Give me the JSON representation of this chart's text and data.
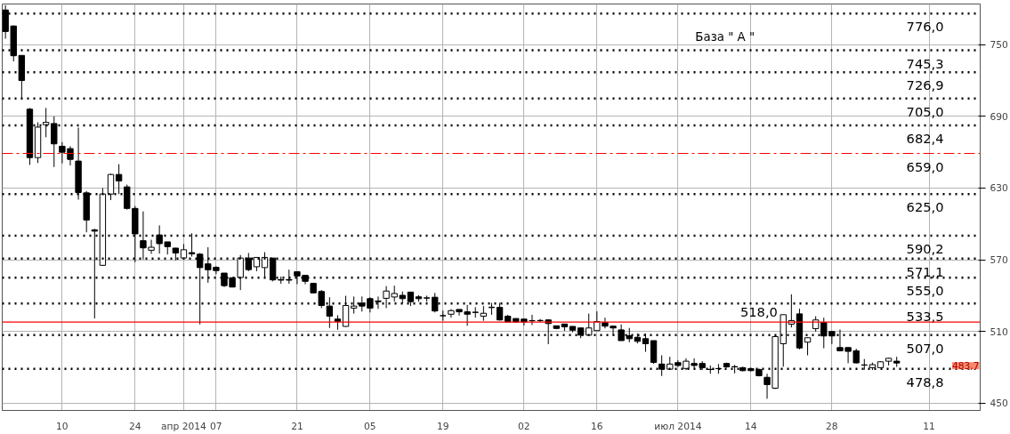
{
  "chart_data": {
    "type": "candlestick",
    "categories": [
      null,
      null,
      null,
      null,
      null,
      null,
      null,
      "10",
      null,
      null,
      null,
      null,
      null,
      null,
      null,
      null,
      "24",
      null,
      null,
      null,
      null,
      null,
      "апр 2014",
      null,
      null,
      null,
      "07",
      null,
      null,
      null,
      null,
      null,
      null,
      null,
      null,
      null,
      "21",
      null,
      null,
      null,
      null,
      null,
      null,
      null,
      null,
      "05",
      null,
      null,
      null,
      null,
      null,
      null,
      null,
      null,
      "19",
      null,
      null,
      null,
      null,
      null,
      null,
      null,
      null,
      null,
      "02",
      null,
      null,
      null,
      null,
      null,
      null,
      null,
      null,
      "16",
      null,
      null,
      null,
      null,
      null,
      null,
      null,
      null,
      null,
      "июл 2014",
      null,
      null,
      null,
      null,
      null,
      null,
      null,
      null,
      "14",
      null,
      null,
      null,
      null,
      null,
      null,
      null,
      null,
      null,
      "28",
      null,
      null,
      null,
      null,
      null,
      null,
      null,
      null,
      null,
      null,
      null,
      "11",
      null,
      null,
      null,
      null,
      null
    ],
    "ohlc": [
      [
        779,
        783,
        755,
        761
      ],
      [
        765.6,
        766,
        736,
        740.7
      ],
      [
        741,
        741,
        704,
        720
      ],
      [
        696,
        697,
        649.4,
        655.5
      ],
      [
        655.5,
        685,
        651,
        681
      ],
      [
        683,
        697,
        672.6,
        685
      ],
      [
        684,
        690,
        647.6,
        667
      ],
      [
        665,
        668.4,
        650.7,
        660
      ],
      [
        663,
        665,
        649,
        654
      ],
      [
        652.6,
        680.6,
        620.3,
        626.3
      ],
      [
        626,
        627.5,
        593,
        603.3
      ],
      [
        595,
        596,
        521,
        594
      ],
      [
        565.4,
        630,
        565,
        625.1
      ],
      [
        625,
        642,
        620,
        641.4
      ],
      [
        641.4,
        650,
        625,
        636
      ],
      [
        631,
        632.9,
        612,
        613
      ],
      [
        613,
        615,
        568,
        591.7
      ],
      [
        586,
        610.5,
        570.3,
        580
      ],
      [
        578,
        586.8,
        575,
        580.5
      ],
      [
        590.8,
        598.8,
        575.2,
        583.5
      ],
      [
        585,
        585,
        574.5,
        581
      ],
      [
        579.8,
        580,
        569.6,
        575.7
      ],
      [
        571.5,
        583.2,
        571.5,
        578.4
      ],
      [
        576,
        592.2,
        572.7,
        575
      ],
      [
        574.7,
        575.7,
        516,
        563.5
      ],
      [
        566.6,
        580.5,
        550.8,
        561.7
      ],
      [
        563.7,
        564.6,
        558,
        561
      ],
      [
        558.9,
        558.9,
        547.2,
        548.4
      ],
      [
        555,
        555,
        547,
        547.2
      ],
      [
        555.2,
        574,
        544.7,
        571.5
      ],
      [
        571.5,
        575.7,
        560.5,
        561.8
      ],
      [
        564.2,
        572,
        560.5,
        572
      ],
      [
        563.5,
        576.4,
        555.7,
        572
      ],
      [
        571.5,
        571.5,
        552,
        553.2
      ],
      [
        553.5,
        556,
        550,
        553
      ],
      [
        553.5,
        561.8,
        550,
        553
      ],
      [
        560,
        560,
        549.6,
        556.5
      ],
      [
        557,
        557,
        549.6,
        552
      ],
      [
        550.3,
        550.3,
        542,
        542.3
      ],
      [
        543.5,
        544.7,
        529.6,
        531.8
      ],
      [
        531.3,
        538.7,
        513,
        522.8
      ],
      [
        520.4,
        523.6,
        511.5,
        518.5
      ],
      [
        514.3,
        539.9,
        514,
        531.8
      ],
      [
        529.6,
        539.3,
        525,
        531.3
      ],
      [
        533.8,
        539.3,
        526.7,
        531.3
      ],
      [
        537.5,
        538.7,
        526,
        529.6
      ],
      [
        535.6,
        539.3,
        529,
        535
      ],
      [
        537.8,
        548,
        529.6,
        543.9
      ],
      [
        538.9,
        548.4,
        535,
        541.8
      ],
      [
        540.3,
        543.5,
        533.5,
        537.5
      ],
      [
        543,
        543,
        531.3,
        535
      ],
      [
        539,
        540.4,
        535,
        537.5
      ],
      [
        538.2,
        540,
        535,
        538
      ],
      [
        538.7,
        542.3,
        526,
        527.2
      ],
      [
        523.3,
        527.5,
        519,
        523.2
      ],
      [
        524.5,
        528.7,
        521.6,
        527.5
      ],
      [
        528.5,
        528.5,
        523.4,
        526.5
      ],
      [
        526.5,
        532.3,
        514.8,
        524.5
      ],
      [
        526.2,
        530.4,
        521.6,
        526
      ],
      [
        522.8,
        531.3,
        519,
        525.3
      ],
      [
        530,
        534,
        524,
        530.4
      ],
      [
        530.2,
        534,
        519.2,
        519.7
      ],
      [
        522.8,
        524,
        518,
        518
      ],
      [
        520.9,
        520.9,
        517.3,
        518
      ],
      [
        520.4,
        520.4,
        515,
        518
      ],
      [
        519.2,
        524,
        515.5,
        519
      ],
      [
        519.3,
        520.5,
        518,
        519.1
      ],
      [
        519.7,
        520.4,
        499.4,
        516.7
      ],
      [
        514.8,
        514.8,
        512,
        512.6
      ],
      [
        516.3,
        516.3,
        510.5,
        513.9
      ],
      [
        514.3,
        514.3,
        509.4,
        511.1
      ],
      [
        513,
        513,
        504.5,
        507
      ],
      [
        507,
        525,
        507,
        513
      ],
      [
        510.8,
        526.9,
        510.8,
        518.3
      ],
      [
        517.5,
        521.6,
        512.6,
        514.5
      ],
      [
        514.5,
        514.5,
        507,
        513
      ],
      [
        511.4,
        516,
        502.4,
        502.4
      ],
      [
        506.6,
        513,
        501,
        504
      ],
      [
        505.2,
        508.4,
        500,
        501.8
      ],
      [
        504,
        508.4,
        493,
        499.8
      ],
      [
        502.4,
        502.4,
        483,
        484.2
      ],
      [
        482.8,
        490.1,
        472.8,
        478.5
      ],
      [
        478.5,
        488.9,
        478.5,
        482.8
      ],
      [
        484,
        486,
        480.4,
        481.6
      ],
      [
        479.1,
        487.6,
        477.8,
        485.2
      ],
      [
        483.3,
        487.6,
        479,
        481.6
      ],
      [
        483.3,
        485.2,
        477.8,
        479.8
      ],
      [
        478.4,
        481.6,
        474.7,
        478.2
      ],
      [
        479,
        482.8,
        474.7,
        478.9
      ],
      [
        483.3,
        484,
        479.8,
        480.4
      ],
      [
        480.6,
        482.1,
        475,
        480.5
      ],
      [
        479.8,
        480.6,
        476.6,
        477.3
      ],
      [
        479,
        479,
        476.6,
        477.3
      ],
      [
        478.3,
        479,
        472.5,
        473
      ],
      [
        471.7,
        474.7,
        453.8,
        465.6
      ],
      [
        462.6,
        507,
        461.9,
        505.8
      ],
      [
        499.8,
        524.1,
        480.6,
        524.1
      ],
      [
        516.2,
        541.1,
        513.4,
        519.2
      ],
      [
        524.8,
        529.1,
        495.1,
        496.3
      ],
      [
        501.1,
        505.2,
        490.1,
        504.8
      ],
      [
        512.4,
        522.8,
        509.9,
        519.7
      ],
      [
        517.5,
        521.6,
        496,
        506.3
      ],
      [
        510,
        510,
        499.5,
        506.3
      ],
      [
        496.6,
        511.7,
        493.4,
        493.9
      ],
      [
        496.6,
        496.6,
        483.5,
        493.4
      ],
      [
        493.9,
        495.7,
        483.3,
        483.8
      ],
      [
        482.1,
        487,
        478,
        481.9
      ],
      [
        479.8,
        484,
        477.8,
        482.3
      ],
      [
        479.8,
        485.2,
        479.8,
        484.7
      ],
      [
        485.2,
        488,
        481.6,
        487.6
      ],
      [
        485.2,
        488.9,
        480.4,
        483.7
      ],
      null,
      null,
      null,
      null,
      null,
      null,
      null,
      null,
      null
    ],
    "ylim": [
      444,
      784
    ],
    "yticks": [
      450,
      510,
      570,
      630,
      690,
      750
    ],
    "grid": true,
    "ref_lines": [
      {
        "axis": "y",
        "value": 776.0,
        "label": "776,0",
        "color": "#000000",
        "line_style": "dotted"
      },
      {
        "axis": "y",
        "value": 745.3,
        "label": "745,3",
        "color": "#000000",
        "line_style": "dotted"
      },
      {
        "axis": "y",
        "value": 726.9,
        "label": "726,9",
        "color": "#000000",
        "line_style": "dotted"
      },
      {
        "axis": "y",
        "value": 705.0,
        "label": "705,0",
        "color": "#000000",
        "line_style": "dotted"
      },
      {
        "axis": "y",
        "value": 682.4,
        "label": "682,4",
        "color": "#000000",
        "line_style": "dotted"
      },
      {
        "axis": "y",
        "value": 659.0,
        "label": "659,0",
        "color": "#ff0000",
        "line_style": "dashed"
      },
      {
        "axis": "y",
        "value": 625.0,
        "label": "625,0",
        "color": "#000000",
        "line_style": "dotted"
      },
      {
        "axis": "y",
        "value": 590.2,
        "label": "590,2",
        "color": "#000000",
        "line_style": "dotted"
      },
      {
        "axis": "y",
        "value": 571.1,
        "label": "571,1",
        "color": "#000000",
        "line_style": "dotted"
      },
      {
        "axis": "y",
        "value": 555.0,
        "label": "555,0",
        "color": "#000000",
        "line_style": "dotted"
      },
      {
        "axis": "y",
        "value": 533.5,
        "label": "533,5",
        "color": "#000000",
        "line_style": "dotted"
      },
      {
        "axis": "y",
        "value": 518.0,
        "label": "518,0",
        "color": "#ff0000",
        "line_style": "solid"
      },
      {
        "axis": "y",
        "value": 507.0,
        "label": "507,0",
        "color": "#000000",
        "line_style": "dotted"
      },
      {
        "axis": "y",
        "value": 478.8,
        "label": "478,8",
        "color": "#000000",
        "line_style": "dotted"
      }
    ],
    "annotations": [
      "База \" А \"",
      "483,7"
    ]
  }
}
